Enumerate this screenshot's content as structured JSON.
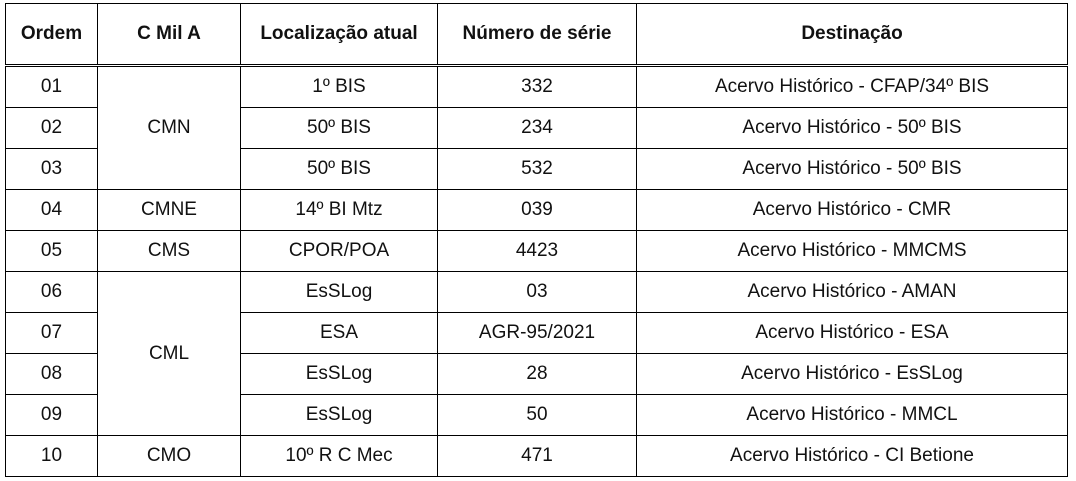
{
  "table": {
    "header": [
      "Ordem",
      "C Mil A",
      "Localização atual",
      "Número de série",
      "Destinação"
    ],
    "groups": [
      {
        "cmil": "CMN",
        "rows": [
          [
            "01",
            "1º BIS",
            "332",
            "Acervo Histórico - CFAP/34º BIS"
          ],
          [
            "02",
            "50º BIS",
            "234",
            "Acervo Histórico - 50º BIS"
          ],
          [
            "03",
            "50º BIS",
            "532",
            "Acervo Histórico - 50º BIS"
          ]
        ]
      },
      {
        "cmil": "CMNE",
        "rows": [
          [
            "04",
            "14º BI Mtz",
            "039",
            "Acervo Histórico - CMR"
          ]
        ]
      },
      {
        "cmil": "CMS",
        "rows": [
          [
            "05",
            "CPOR/POA",
            "4423",
            "Acervo Histórico - MMCMS"
          ]
        ]
      },
      {
        "cmil": "CML",
        "rows": [
          [
            "06",
            "EsSLog",
            "03",
            "Acervo Histórico - AMAN"
          ],
          [
            "07",
            "ESA",
            "AGR-95/2021",
            "Acervo Histórico - ESA"
          ],
          [
            "08",
            "EsSLog",
            "28",
            "Acervo Histórico - EsSLog"
          ],
          [
            "09",
            "EsSLog",
            "50",
            "Acervo Histórico - MMCL"
          ]
        ]
      },
      {
        "cmil": "CMO",
        "rows": [
          [
            "10",
            "10º R C Mec",
            "471",
            "Acervo Histórico - CI Betione"
          ]
        ]
      }
    ]
  }
}
